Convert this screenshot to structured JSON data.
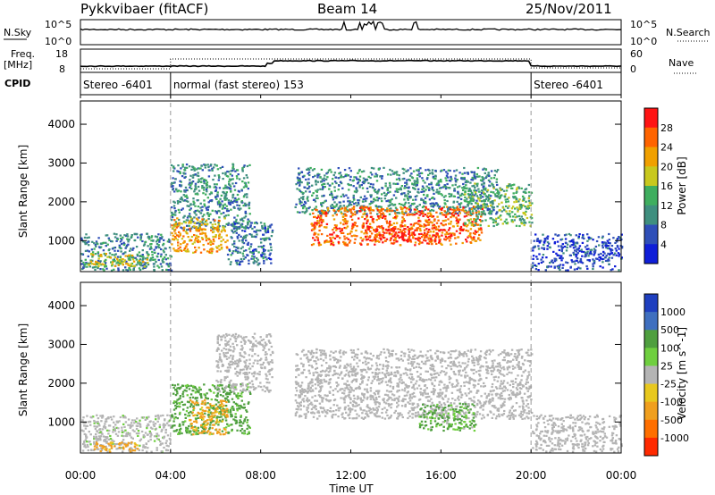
{
  "header": {
    "station": "Pykkvibaer (fitACF)",
    "beam": "Beam 14",
    "date": "25/Nov/2011"
  },
  "left_labels": {
    "nsky": "N.Sky",
    "nsky_hi": "10^5",
    "nsky_lo": "10^0",
    "freq": "Freq.",
    "freq_unit": "[MHz]",
    "freq_hi": "18",
    "freq_lo": "8",
    "cpid": "CPID"
  },
  "right_labels": {
    "nsearch": "N.Search",
    "nsearch_hi": "10^5",
    "nsearch_lo": "10^0",
    "nave": "Nave",
    "nave_hi": "60",
    "nave_lo": "0"
  },
  "modes": [
    {
      "label": "Stereo -6401",
      "start_h": 0,
      "end_h": 4
    },
    {
      "label": "normal (fast stereo) 153",
      "start_h": 4,
      "end_h": 20
    },
    {
      "label": "Stereo -6401",
      "start_h": 20,
      "end_h": 24
    }
  ],
  "x_axis": {
    "title": "Time UT",
    "ticks": [
      "00:00",
      "04:00",
      "08:00",
      "12:00",
      "16:00",
      "20:00",
      "00:00"
    ],
    "range_h": [
      0,
      24
    ]
  },
  "power_panel": {
    "ylabel": "Slant Range [km]",
    "yticks": [
      "1000",
      "2000",
      "3000",
      "4000"
    ],
    "colorbar_label": "Power [dB]",
    "colorbar_ticks": [
      "4",
      "8",
      "12",
      "16",
      "20",
      "24",
      "28"
    ]
  },
  "velocity_panel": {
    "ylabel": "Slant Range [km]",
    "yticks": [
      "1000",
      "2000",
      "3000",
      "4000"
    ],
    "colorbar_label": "Velocity [m s^-1]",
    "colorbar_ticks": [
      "1000",
      "500",
      "100",
      "25",
      "-25",
      "-100",
      "-500",
      "-1000"
    ]
  },
  "colors": {
    "power_scale": [
      "#0f1ed8",
      "#2f4fb8",
      "#3f8f7f",
      "#3fae5f",
      "#c8c81e",
      "#f0a000",
      "#ff6400",
      "#ff1414"
    ],
    "velocity_scale": [
      "#1f3fbf",
      "#3f6fbf",
      "#4f9f3f",
      "#6fcf3f",
      "#b4b4b4",
      "#e8c81e",
      "#f09f1e",
      "#ff6f00",
      "#ff2a00"
    ]
  },
  "chart_data": {
    "type": "heatmap",
    "x_unit": "hours UT",
    "y_unit": "km",
    "ylim": [
      200,
      4600
    ],
    "xlim": [
      0,
      24
    ],
    "power_regions": [
      {
        "t0": 0.0,
        "t1": 4.0,
        "r0": 250,
        "r1": 1200,
        "db": 10
      },
      {
        "t0": 0.2,
        "t1": 3.0,
        "r0": 350,
        "r1": 700,
        "db": 18
      },
      {
        "t0": 4.0,
        "t1": 7.5,
        "r0": 1300,
        "r1": 3000,
        "db": 10
      },
      {
        "t0": 4.0,
        "t1": 6.5,
        "r0": 700,
        "r1": 1600,
        "db": 22
      },
      {
        "t0": 6.5,
        "t1": 8.5,
        "r0": 400,
        "r1": 1500,
        "db": 8
      },
      {
        "t0": 9.5,
        "t1": 18.5,
        "r0": 1700,
        "r1": 2900,
        "db": 10
      },
      {
        "t0": 10.2,
        "t1": 17.8,
        "r0": 900,
        "r1": 1900,
        "db": 26
      },
      {
        "t0": 12.5,
        "t1": 16.5,
        "r0": 1000,
        "r1": 1400,
        "db": 28
      },
      {
        "t0": 17.0,
        "t1": 20.0,
        "r0": 1400,
        "r1": 2500,
        "db": 14
      },
      {
        "t0": 20.0,
        "t1": 24.0,
        "r0": 250,
        "r1": 1200,
        "db": 5
      }
    ],
    "velocity_regions": [
      {
        "t0": 0.0,
        "t1": 4.0,
        "r0": 250,
        "r1": 1200,
        "v": 25
      },
      {
        "t0": 0.5,
        "t1": 2.5,
        "r0": 250,
        "r1": 500,
        "v": -200
      },
      {
        "t0": 4.0,
        "t1": 7.5,
        "r0": 700,
        "r1": 2000,
        "v": 200
      },
      {
        "t0": 4.8,
        "t1": 6.5,
        "r0": 700,
        "r1": 1600,
        "v": -200
      },
      {
        "t0": 6.0,
        "t1": 8.5,
        "r0": 1800,
        "r1": 3300,
        "v": 0
      },
      {
        "t0": 9.5,
        "t1": 20.0,
        "r0": 1100,
        "r1": 2900,
        "v": 0
      },
      {
        "t0": 15.0,
        "t1": 17.5,
        "r0": 800,
        "r1": 1500,
        "v": 150
      },
      {
        "t0": 20.0,
        "t1": 24.0,
        "r0": 250,
        "r1": 1200,
        "v": 0
      }
    ]
  }
}
